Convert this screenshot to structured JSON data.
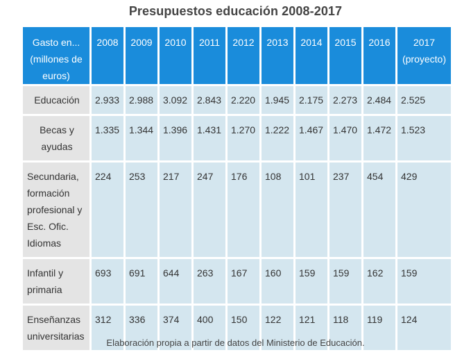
{
  "title": "Presupuestos educación 2008-2017",
  "colors": {
    "header_bg": "#1a8cdb",
    "row_label_bg": "#e4e4e4",
    "cell_bg": "#d4e6ef"
  },
  "table": {
    "header": {
      "label_line1": "Gasto en...",
      "label_line2": "(millones de",
      "label_line3": "euros)",
      "years": [
        "2008",
        "2009",
        "2010",
        "2011",
        "2012",
        "2013",
        "2014",
        "2015",
        "2016"
      ],
      "last_year": "2017",
      "last_year_note": "(proyecto)"
    },
    "rows": [
      {
        "label_lines": [
          "Educación"
        ],
        "values": [
          "2.933",
          "2.988",
          "3.092",
          "2.843",
          "2.220",
          "1.945",
          "2.175",
          "2.273",
          "2.484",
          "2.525"
        ]
      },
      {
        "label_lines": [
          "Becas y",
          "ayudas"
        ],
        "values": [
          "1.335",
          "1.344",
          "1.396",
          "1.431",
          "1.270",
          "1.222",
          "1.467",
          "1.470",
          "1.472",
          "1.523"
        ]
      },
      {
        "label_lines": [
          "Secundaria,",
          "formación",
          "profesional y",
          "Esc. Ofic.",
          "Idiomas"
        ],
        "values": [
          "224",
          "253",
          "217",
          "247",
          "176",
          "108",
          "101",
          "237",
          "454",
          "429"
        ]
      },
      {
        "label_lines": [
          "Infantil y",
          "primaria"
        ],
        "values": [
          "693",
          "691",
          "644",
          "263",
          "167",
          "160",
          "159",
          "159",
          "162",
          "159"
        ]
      },
      {
        "label_lines": [
          "Enseñanzas",
          "universitarias"
        ],
        "values": [
          "312",
          "336",
          "374",
          "400",
          "150",
          "122",
          "121",
          "118",
          "119",
          "124"
        ]
      }
    ]
  },
  "caption": "Elaboración propia a partir de datos del Ministerio de Educación."
}
